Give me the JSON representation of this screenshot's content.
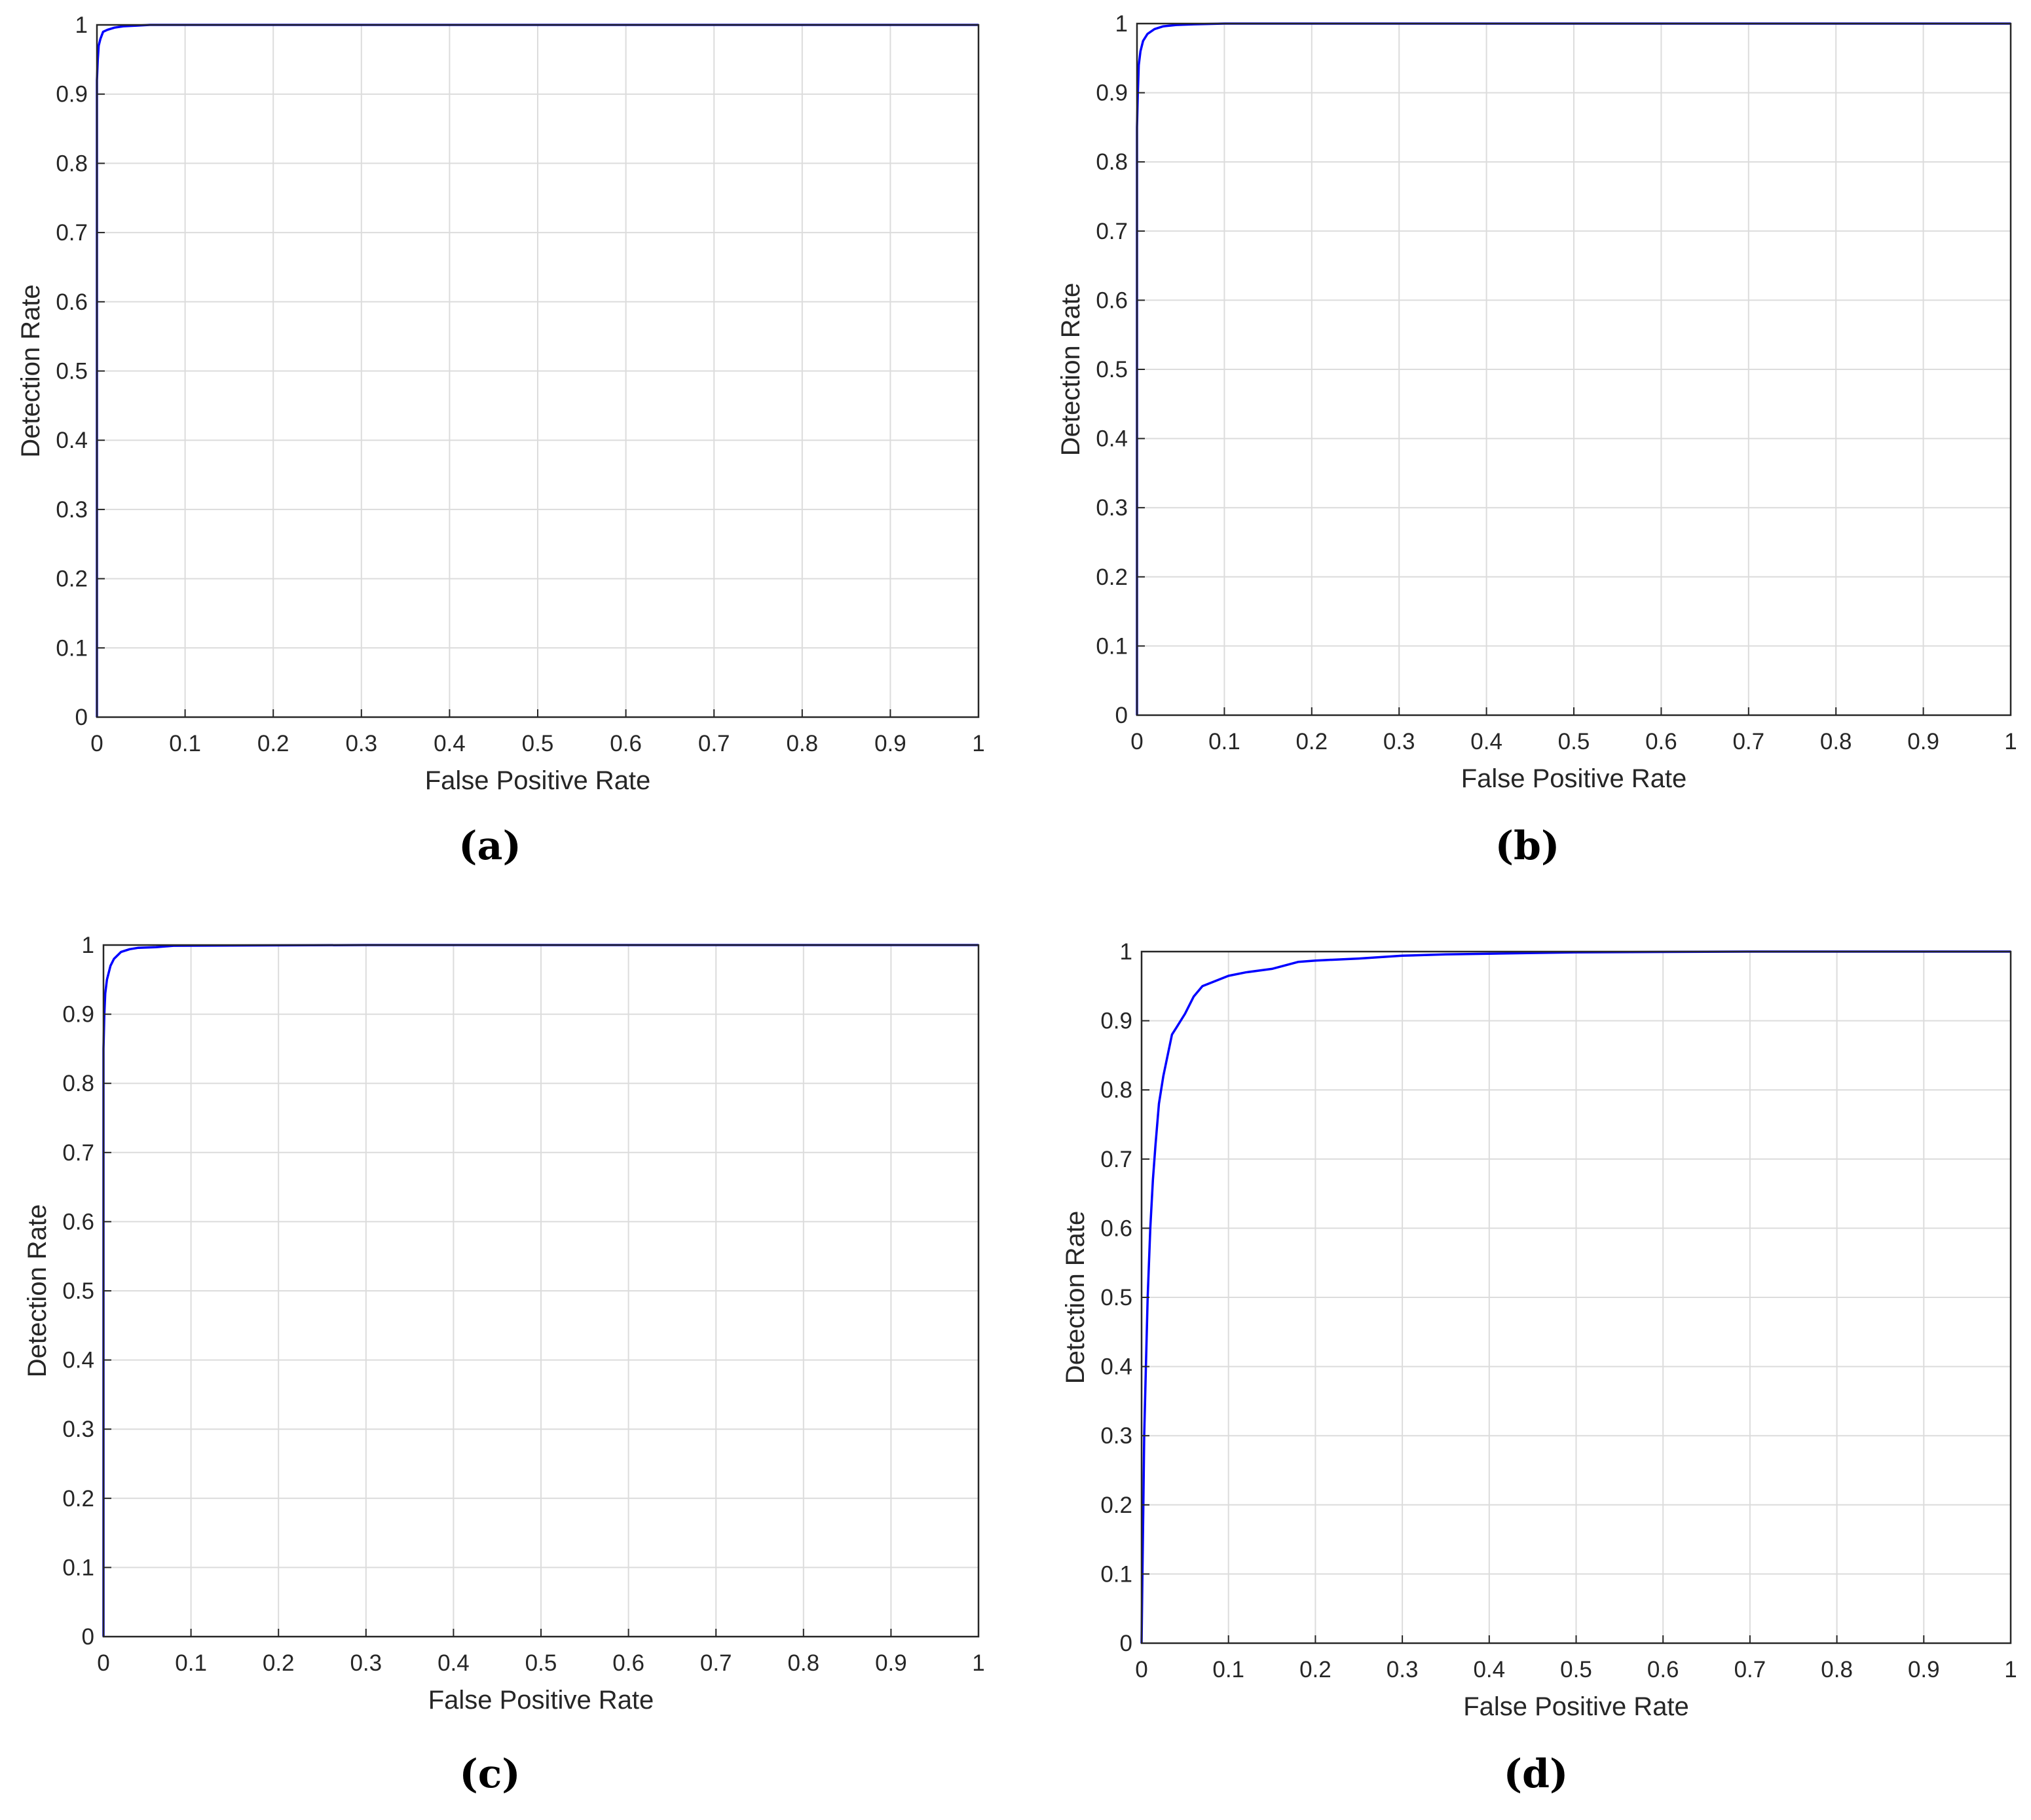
{
  "colors": {
    "curve": "#0000ff",
    "axis": "#262626",
    "grid": "#dcdcdc"
  },
  "chart_data": [
    {
      "panel": "(a)",
      "type": "line",
      "xlabel": "False Positive Rate",
      "ylabel": "Detection Rate",
      "xlim": [
        0,
        1
      ],
      "ylim": [
        0,
        1
      ],
      "xticks": [
        "0",
        "0.1",
        "0.2",
        "0.3",
        "0.4",
        "0.5",
        "0.6",
        "0.7",
        "0.8",
        "0.9",
        "1"
      ],
      "yticks": [
        "0",
        "0.1",
        "0.2",
        "0.3",
        "0.4",
        "0.5",
        "0.6",
        "0.7",
        "0.8",
        "0.9",
        "1"
      ],
      "grid": true,
      "series": [
        {
          "x": [
            0,
            0,
            0.001,
            0.002,
            0.004,
            0.007,
            0.012,
            0.02,
            0.03,
            0.045,
            0.06,
            0.1,
            1
          ],
          "y": [
            0,
            0.92,
            0.95,
            0.97,
            0.98,
            0.99,
            0.993,
            0.996,
            0.998,
            0.999,
            1,
            1,
            1
          ]
        }
      ]
    },
    {
      "panel": "(b)",
      "type": "line",
      "xlabel": "False Positive Rate",
      "ylabel": "Detection Rate",
      "xlim": [
        0,
        1
      ],
      "ylim": [
        0,
        1
      ],
      "xticks": [
        "0",
        "0.1",
        "0.2",
        "0.3",
        "0.4",
        "0.5",
        "0.6",
        "0.7",
        "0.8",
        "0.9",
        "1"
      ],
      "yticks": [
        "0",
        "0.1",
        "0.2",
        "0.3",
        "0.4",
        "0.5",
        "0.6",
        "0.7",
        "0.8",
        "0.9",
        "1"
      ],
      "grid": true,
      "series": [
        {
          "x": [
            0,
            0,
            0.001,
            0.002,
            0.004,
            0.007,
            0.012,
            0.02,
            0.03,
            0.045,
            0.065,
            0.1,
            1
          ],
          "y": [
            0,
            0.85,
            0.9,
            0.94,
            0.96,
            0.975,
            0.985,
            0.992,
            0.996,
            0.998,
            0.999,
            1,
            1
          ]
        }
      ]
    },
    {
      "panel": "(c)",
      "type": "line",
      "xlabel": "False Positive Rate",
      "ylabel": "Detection Rate",
      "xlim": [
        0,
        1
      ],
      "ylim": [
        0,
        1
      ],
      "xticks": [
        "0",
        "0.1",
        "0.2",
        "0.3",
        "0.4",
        "0.5",
        "0.6",
        "0.7",
        "0.8",
        "0.9",
        "1"
      ],
      "yticks": [
        "0",
        "0.1",
        "0.2",
        "0.3",
        "0.4",
        "0.5",
        "0.6",
        "0.7",
        "0.8",
        "0.9",
        "1"
      ],
      "grid": true,
      "series": [
        {
          "x": [
            0,
            0,
            0.001,
            0.002,
            0.004,
            0.008,
            0.012,
            0.02,
            0.03,
            0.04,
            0.06,
            0.08,
            0.3,
            1
          ],
          "y": [
            0,
            0.85,
            0.9,
            0.93,
            0.95,
            0.97,
            0.98,
            0.99,
            0.994,
            0.996,
            0.997,
            0.999,
            1,
            1
          ]
        }
      ]
    },
    {
      "panel": "(d)",
      "type": "line",
      "xlabel": "False Positive Rate",
      "ylabel": "Detection Rate",
      "xlim": [
        0,
        1
      ],
      "ylim": [
        0,
        1
      ],
      "xticks": [
        "0",
        "0.1",
        "0.2",
        "0.3",
        "0.4",
        "0.5",
        "0.6",
        "0.7",
        "0.8",
        "0.9",
        "1"
      ],
      "yticks": [
        "0",
        "0.1",
        "0.2",
        "0.3",
        "0.4",
        "0.5",
        "0.6",
        "0.7",
        "0.8",
        "0.9",
        "1"
      ],
      "grid": true,
      "series": [
        {
          "x": [
            0,
            0.001,
            0.002,
            0.003,
            0.005,
            0.007,
            0.01,
            0.013,
            0.016,
            0.02,
            0.025,
            0.03,
            0.035,
            0.04,
            0.05,
            0.06,
            0.07,
            0.08,
            0.09,
            0.1,
            0.12,
            0.15,
            0.18,
            0.2,
            0.25,
            0.3,
            0.35,
            0.4,
            0.45,
            0.5,
            0.7,
            1
          ],
          "y": [
            0,
            0.1,
            0.2,
            0.3,
            0.4,
            0.5,
            0.6,
            0.67,
            0.72,
            0.78,
            0.82,
            0.85,
            0.88,
            0.89,
            0.91,
            0.935,
            0.95,
            0.955,
            0.96,
            0.965,
            0.97,
            0.975,
            0.985,
            0.987,
            0.99,
            0.994,
            0.996,
            0.997,
            0.998,
            0.999,
            1,
            1
          ]
        }
      ]
    }
  ]
}
